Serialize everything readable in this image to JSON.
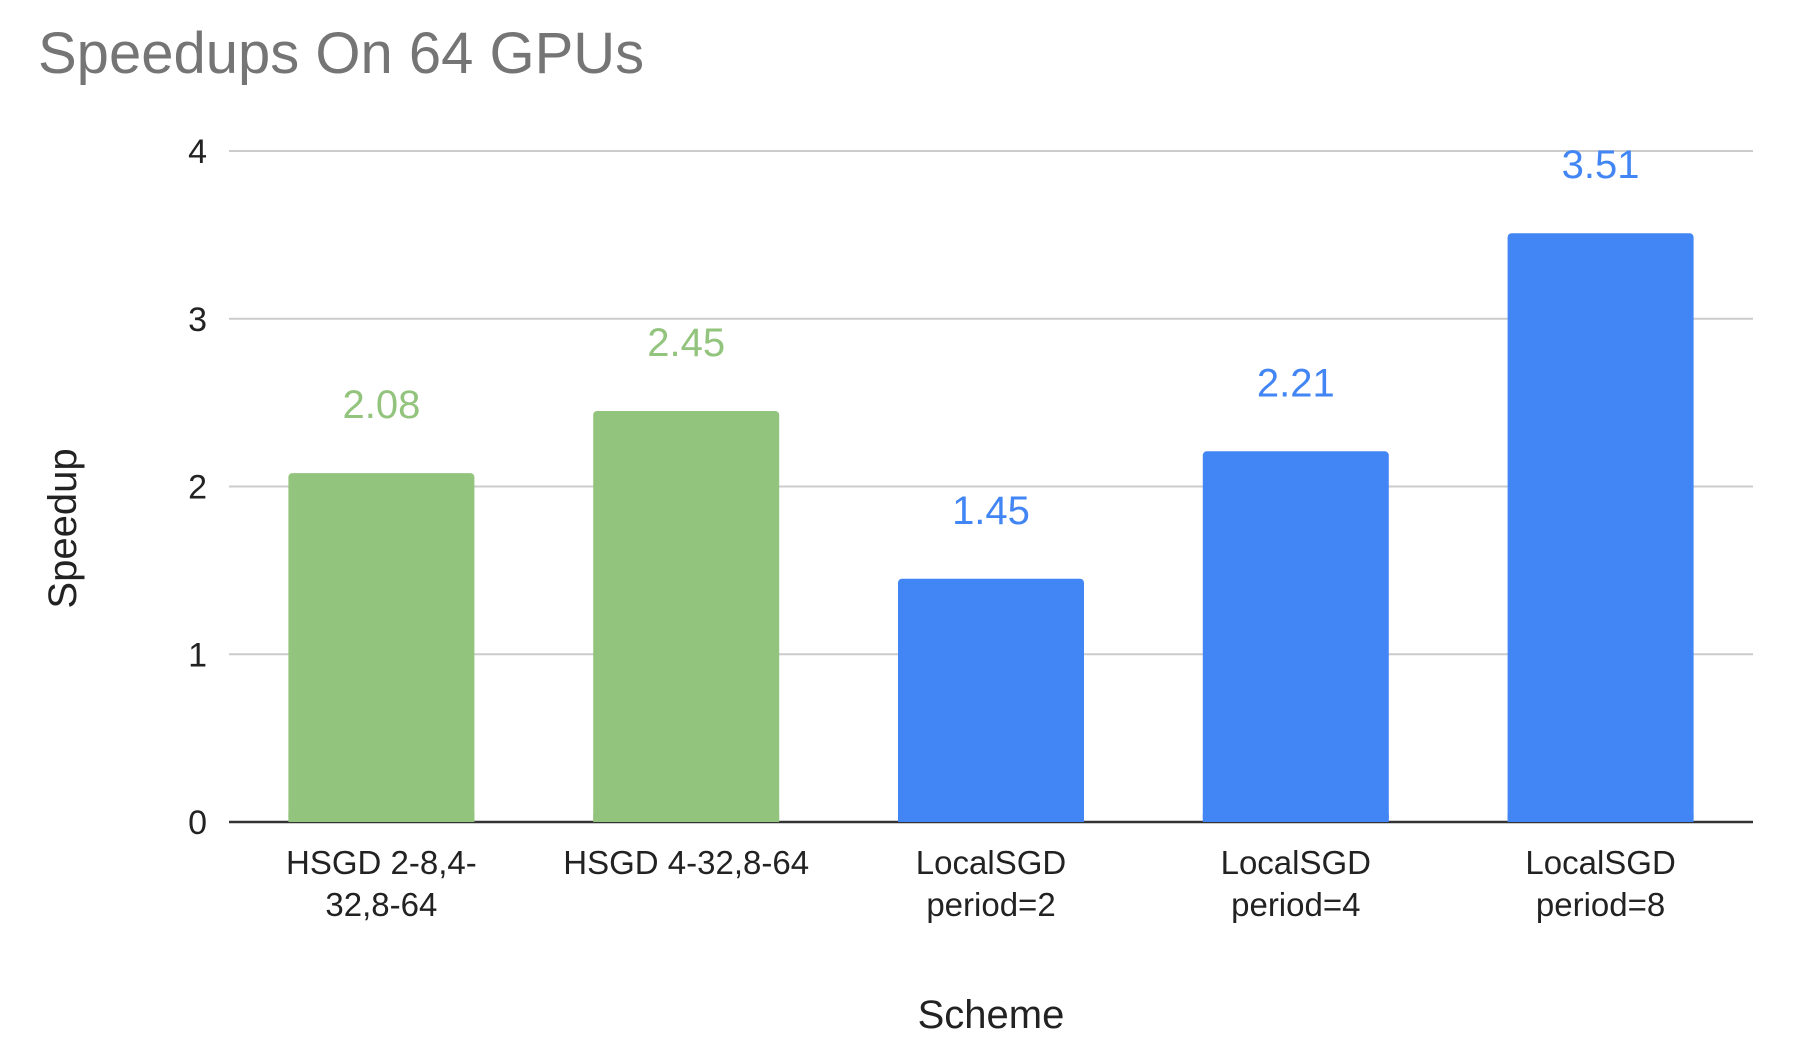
{
  "chart_data": {
    "type": "bar",
    "title": "Speedups On 64 GPUs",
    "xlabel": "Scheme",
    "ylabel": "Speedup",
    "categories": [
      [
        "HSGD 2-8,4-",
        "32,8-64"
      ],
      [
        "HSGD 4-32,8-64"
      ],
      [
        "LocalSGD",
        "period=2"
      ],
      [
        "LocalSGD",
        "period=4"
      ],
      [
        "LocalSGD",
        "period=8"
      ]
    ],
    "values": [
      2.08,
      2.45,
      1.45,
      2.21,
      3.51
    ],
    "value_labels": [
      "2.08",
      "2.45",
      "1.45",
      "2.21",
      "3.51"
    ],
    "bar_colors": [
      "#93c47d",
      "#93c47d",
      "#4285f4",
      "#4285f4",
      "#4285f4"
    ],
    "label_colors": [
      "#93c47d",
      "#93c47d",
      "#4285f4",
      "#4285f4",
      "#4285f4"
    ],
    "ylim": [
      0,
      4
    ],
    "yticks": [
      0,
      1,
      2,
      3,
      4
    ],
    "grid": true,
    "legend": "none"
  },
  "colors": {
    "title": "#757575",
    "gridline": "#cccccc",
    "axis": "#333333",
    "text": "#222222"
  }
}
